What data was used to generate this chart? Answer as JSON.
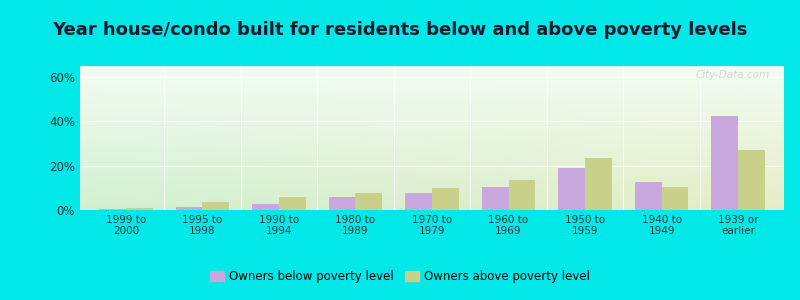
{
  "title": "Year house/condo built for residents below and above poverty levels",
  "categories": [
    "1999 to\n2000",
    "1995 to\n1998",
    "1990 to\n1994",
    "1980 to\n1989",
    "1970 to\n1979",
    "1960 to\n1969",
    "1950 to\n1959",
    "1940 to\n1949",
    "1939 or\nearlier"
  ],
  "below_poverty": [
    0.5,
    1.5,
    2.5,
    6.0,
    7.5,
    10.5,
    19.0,
    12.5,
    42.5
  ],
  "above_poverty": [
    1.0,
    3.5,
    6.0,
    7.5,
    10.0,
    13.5,
    23.5,
    10.5,
    27.0
  ],
  "below_color": "#c9a8e0",
  "above_color": "#c8d08a",
  "ylim": [
    0,
    65
  ],
  "yticks": [
    0,
    20,
    40,
    60
  ],
  "ytick_labels": [
    "0%",
    "20%",
    "40%",
    "60%"
  ],
  "outer_bg": "#00e8e8",
  "bar_width": 0.35,
  "title_fontsize": 13,
  "legend_below_label": "Owners below poverty level",
  "legend_above_label": "Owners above poverty level",
  "watermark": "City-Data.com"
}
